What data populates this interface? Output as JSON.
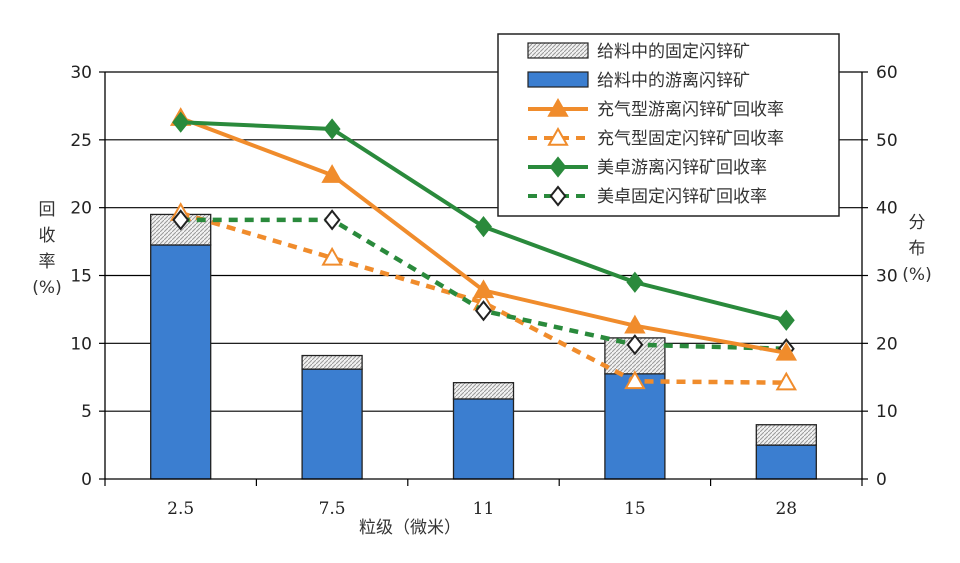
{
  "chart_data": {
    "type": "bar+line",
    "categories": [
      "2.5",
      "7.5",
      "11",
      "15",
      "28"
    ],
    "xlabel": "粒级（微米）",
    "ylabel_left": [
      "回",
      "收",
      "率",
      "(%)"
    ],
    "ylabel_right": [
      "分",
      "布",
      "(%)"
    ],
    "ylim_left": [
      0,
      30
    ],
    "ylim_right": [
      0,
      60
    ],
    "yticks_left": [
      0,
      5,
      10,
      15,
      20,
      25,
      30
    ],
    "yticks_right": [
      0,
      10,
      20,
      30,
      40,
      50,
      60
    ],
    "grid": "horizontal",
    "legend_position": "top-right",
    "bar_series": [
      {
        "name": "给料中的游离闪锌矿",
        "axis": "right",
        "color": "#3b7ed0",
        "style": "solid",
        "values": [
          34.5,
          16.2,
          11.8,
          15.5,
          5.0
        ]
      },
      {
        "name": "给料中的固定闪锌矿",
        "axis": "right",
        "color": "#d8d8d8",
        "style": "hatched",
        "values": [
          4.5,
          2.0,
          2.4,
          5.3,
          3.0
        ]
      }
    ],
    "line_series": [
      {
        "name": "充气型游离闪锌矿回收率",
        "axis": "left",
        "color": "#f08c2c",
        "dash": false,
        "marker": "triangle-filled",
        "values": [
          26.6,
          22.4,
          13.9,
          11.3,
          9.3
        ]
      },
      {
        "name": "充气型固定闪锌矿回收率",
        "axis": "left",
        "color": "#f08c2c",
        "dash": true,
        "marker": "triangle-open",
        "values": [
          19.6,
          16.3,
          13.0,
          7.2,
          7.1
        ]
      },
      {
        "name": "美卓游离闪锌矿回收率",
        "axis": "left",
        "color": "#2a8a3c",
        "dash": false,
        "marker": "diamond-filled",
        "values": [
          26.3,
          25.8,
          18.6,
          14.5,
          11.7
        ]
      },
      {
        "name": "美卓固定闪锌矿回收率",
        "axis": "left",
        "color": "#2a8a3c",
        "dash": true,
        "marker": "diamond-open",
        "values": [
          19.1,
          19.1,
          12.4,
          9.9,
          9.6
        ]
      }
    ],
    "legend_order": [
      "给料中的固定闪锌矿",
      "给料中的游离闪锌矿",
      "充气型游离闪锌矿回收率",
      "充气型固定闪锌矿回收率",
      "美卓游离闪锌矿回收率",
      "美卓固定闪锌矿回收率"
    ]
  }
}
